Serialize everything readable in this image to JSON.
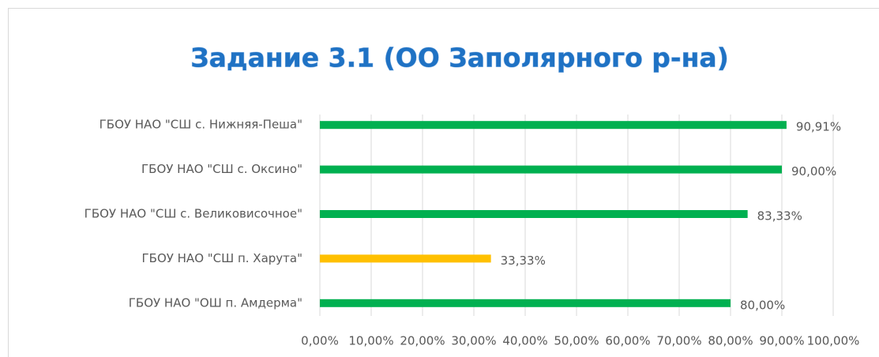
{
  "chart_data": {
    "type": "barh",
    "title": "Задание 3.1  (ОО Заполярного р-на)",
    "categories": [
      "ГБОУ НАО \"СШ с. Нижняя-Пеша\"",
      "ГБОУ НАО \"СШ с. Оксино\"",
      "ГБОУ НАО \"СШ с. Великовисочное\"",
      "ГБОУ НАО \"СШ п. Харута\"",
      "ГБОУ НАО \"ОШ п. Амдерма\""
    ],
    "values": [
      90.91,
      90.0,
      83.33,
      33.33,
      80.0
    ],
    "value_labels": [
      "90,91%",
      "90,00%",
      "83,33%",
      "33,33%",
      "80,00%"
    ],
    "colors": [
      "#00b050",
      "#00b050",
      "#00b050",
      "#ffc000",
      "#00b050"
    ],
    "xlim": [
      0,
      100
    ],
    "xticks": [
      {
        "value": 0,
        "label": "0,00%"
      },
      {
        "value": 10,
        "label": "10,00%"
      },
      {
        "value": 20,
        "label": "20,00%"
      },
      {
        "value": 30,
        "label": "30,00%"
      },
      {
        "value": 40,
        "label": "40,00%"
      },
      {
        "value": 50,
        "label": "50,00%"
      },
      {
        "value": 60,
        "label": "60,00%"
      },
      {
        "value": 70,
        "label": "70,00%"
      },
      {
        "value": 80,
        "label": "80,00%"
      },
      {
        "value": 90,
        "label": "90,00%"
      },
      {
        "value": 100,
        "label": "100,00%"
      }
    ],
    "grid": true
  }
}
